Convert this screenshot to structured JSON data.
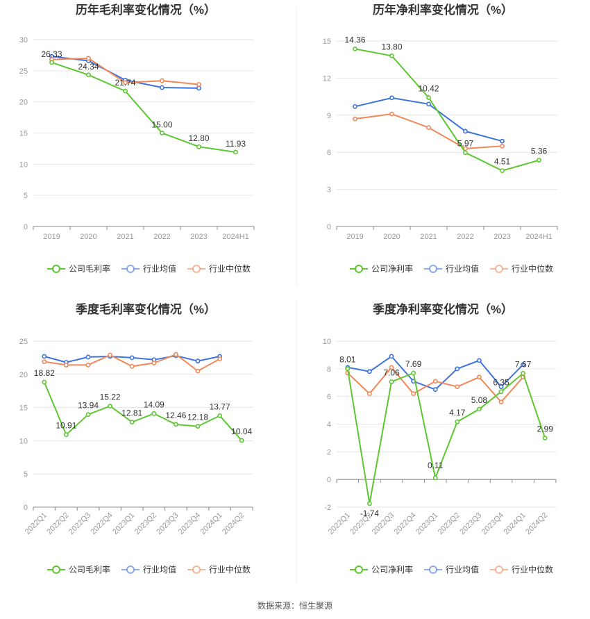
{
  "colors": {
    "company": "#5cc730",
    "industry_avg": "#3d73dc",
    "industry_median": "#f08857",
    "grid": "#e6e6e6",
    "axis": "#888888",
    "divider": "#eeeeee"
  },
  "source": "数据来源：恒生聚源",
  "chart_data": [
    {
      "type": "line",
      "title": "历年毛利率变化情况（%）",
      "categories": [
        "2019",
        "2020",
        "2021",
        "2022",
        "2023",
        "2024H1"
      ],
      "ylim": [
        0,
        30
      ],
      "yticks": [
        0,
        5,
        10,
        15,
        20,
        25,
        30
      ],
      "grid": true,
      "legend_position": "bottom",
      "series": [
        {
          "name": "公司毛利率",
          "role": "company",
          "values": [
            26.33,
            24.34,
            21.74,
            15.0,
            12.8,
            11.93
          ],
          "labels": [
            "26.33",
            "24.34",
            "21.74",
            "15.00",
            "12.80",
            "11.93"
          ]
        },
        {
          "name": "行业均值",
          "role": "industry_avg",
          "values": [
            27.3,
            26.6,
            23.5,
            22.3,
            22.2,
            null
          ]
        },
        {
          "name": "行业中位数",
          "role": "industry_median",
          "values": [
            26.8,
            27.0,
            23.1,
            23.4,
            22.8,
            null
          ]
        }
      ]
    },
    {
      "type": "line",
      "title": "历年净利率变化情况（%）",
      "categories": [
        "2019",
        "2020",
        "2021",
        "2022",
        "2023",
        "2024H1"
      ],
      "ylim": [
        0,
        15
      ],
      "yticks": [
        0,
        3,
        6,
        9,
        12,
        15
      ],
      "grid": true,
      "legend_position": "bottom",
      "series": [
        {
          "name": "公司净利率",
          "role": "company",
          "values": [
            14.36,
            13.8,
            10.42,
            5.97,
            4.51,
            5.36
          ],
          "labels": [
            "14.36",
            "13.80",
            "10.42",
            "5.97",
            "4.51",
            "5.36"
          ]
        },
        {
          "name": "行业均值",
          "role": "industry_avg",
          "values": [
            9.7,
            10.4,
            9.9,
            7.7,
            6.9,
            null
          ]
        },
        {
          "name": "行业中位数",
          "role": "industry_median",
          "values": [
            8.7,
            9.1,
            8.0,
            6.3,
            6.5,
            null
          ]
        }
      ]
    },
    {
      "type": "line",
      "title": "季度毛利率变化情况（%）",
      "categories": [
        "2022Q1",
        "2022Q2",
        "2022Q3",
        "2022Q4",
        "2023Q1",
        "2023Q2",
        "2023Q3",
        "2023Q4",
        "2024Q1",
        "2024Q2"
      ],
      "ylim": [
        0,
        25
      ],
      "yticks": [
        0,
        5,
        10,
        15,
        20,
        25
      ],
      "grid": true,
      "legend_position": "bottom",
      "series": [
        {
          "name": "公司毛利率",
          "role": "company",
          "values": [
            18.82,
            10.91,
            13.94,
            15.22,
            12.81,
            14.09,
            12.46,
            12.18,
            13.77,
            10.04
          ],
          "labels": [
            "18.82",
            "10.91",
            "13.94",
            "15.22",
            "12.81",
            "14.09",
            "12.46",
            "12.18",
            "13.77",
            "10.04"
          ]
        },
        {
          "name": "行业均值",
          "role": "industry_avg",
          "values": [
            22.7,
            21.8,
            22.6,
            22.7,
            22.5,
            22.2,
            22.8,
            22.0,
            22.7,
            null
          ]
        },
        {
          "name": "行业中位数",
          "role": "industry_median",
          "values": [
            21.9,
            21.4,
            21.4,
            22.9,
            21.2,
            21.7,
            23.0,
            20.5,
            22.3,
            null
          ]
        }
      ]
    },
    {
      "type": "line",
      "title": "季度净利率变化情况（%）",
      "categories": [
        "2022Q1",
        "2022Q2",
        "2022Q3",
        "2022Q4",
        "2023Q1",
        "2023Q2",
        "2023Q3",
        "2023Q4",
        "2024Q1",
        "2024Q2"
      ],
      "ylim": [
        -2,
        10
      ],
      "yticks": [
        -2,
        0,
        2,
        4,
        6,
        8,
        10
      ],
      "grid": true,
      "legend_position": "bottom",
      "series": [
        {
          "name": "公司净利率",
          "role": "company",
          "values": [
            8.01,
            -1.74,
            7.06,
            7.69,
            0.11,
            4.17,
            5.08,
            6.35,
            7.67,
            2.99
          ],
          "labels": [
            "8.01",
            "-1.74",
            "7.06",
            "7.69",
            "0.11",
            "4.17",
            "5.08",
            "6.35",
            "7.67",
            "2.99"
          ]
        },
        {
          "name": "行业均值",
          "role": "industry_avg",
          "values": [
            8.1,
            7.8,
            8.9,
            7.1,
            6.5,
            8.0,
            8.6,
            6.7,
            8.3,
            null
          ]
        },
        {
          "name": "行业中位数",
          "role": "industry_median",
          "values": [
            7.7,
            6.2,
            8.1,
            6.2,
            7.1,
            6.7,
            7.4,
            5.6,
            7.4,
            null
          ]
        }
      ]
    }
  ]
}
